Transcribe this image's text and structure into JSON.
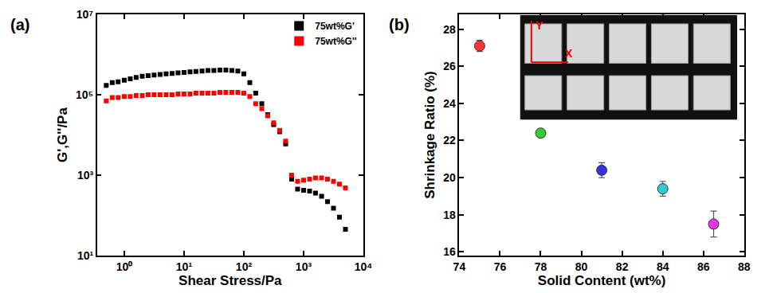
{
  "chart_data": [
    {
      "panel": "(a)",
      "type": "scatter",
      "x_label": "Shear Stress/Pa",
      "y_label": "G',G''/Pa",
      "log": true,
      "legend": "upper right",
      "x": [
        0.5,
        0.63,
        0.79,
        1,
        1.26,
        1.58,
        2,
        2.51,
        3.16,
        3.98,
        5.01,
        6.31,
        7.94,
        10,
        12.6,
        15.8,
        20,
        25.1,
        31.6,
        39.8,
        50.1,
        63.1,
        79.4,
        100,
        126,
        158,
        200,
        251,
        316,
        398,
        501,
        631,
        794,
        1000,
        1260,
        1580,
        2000,
        2510,
        3160,
        3980,
        5010
      ],
      "series": [
        {
          "name": "75wt%G'",
          "color": "#000000",
          "marker": "square",
          "values": [
            170000,
            200000,
            210000,
            230000,
            250000,
            270000,
            290000,
            300000,
            310000,
            320000,
            330000,
            340000,
            350000,
            360000,
            370000,
            380000,
            390000,
            400000,
            400000,
            410000,
            410000,
            400000,
            390000,
            330000,
            200000,
            110000,
            60000,
            32000,
            18000,
            12000,
            6000,
            800,
            450,
            420,
            400,
            360,
            300,
            220,
            150,
            90,
            45
          ]
        },
        {
          "name": "75wt%G''",
          "color": "#ff0000",
          "marker": "square",
          "values": [
            70000,
            85000,
            85000,
            90000,
            90000,
            95000,
            95000,
            100000,
            100000,
            100000,
            100000,
            100000,
            105000,
            105000,
            105000,
            110000,
            110000,
            110000,
            110000,
            115000,
            115000,
            115000,
            115000,
            110000,
            90000,
            60000,
            45000,
            30000,
            20000,
            13000,
            7000,
            1000,
            700,
            750,
            800,
            850,
            850,
            800,
            700,
            600,
            480
          ]
        }
      ],
      "xlim": [
        0.35,
        10000
      ],
      "ylim": [
        10,
        10000000
      ],
      "xticks": [
        {
          "value": 1,
          "label": "10⁰"
        },
        {
          "value": 10,
          "label": "10¹"
        },
        {
          "value": 100,
          "label": "10²"
        },
        {
          "value": 1000,
          "label": "10³"
        },
        {
          "value": 10000,
          "label": "10⁴"
        }
      ],
      "yticks": [
        {
          "value": 10,
          "label": "10¹"
        },
        {
          "value": 1000,
          "label": "10³"
        },
        {
          "value": 100000,
          "label": "10⁵"
        },
        {
          "value": 10000000,
          "label": "10⁷"
        }
      ]
    },
    {
      "panel": "(b)",
      "type": "scatter",
      "x_label": "Solid Content (wt%)",
      "y_label": "Shrinkage Ratio (%)",
      "x": [
        75,
        78,
        81,
        84,
        86.5
      ],
      "values": [
        27.1,
        22.4,
        20.4,
        19.4,
        17.5
      ],
      "errors": [
        0.3,
        0.2,
        0.4,
        0.4,
        0.7
      ],
      "colors": [
        "#ff3333",
        "#33cc33",
        "#3333dd",
        "#33cccc",
        "#ee33ee"
      ],
      "marker": "circle",
      "xlim": [
        74,
        88
      ],
      "ylim": [
        15.8,
        28.8
      ],
      "xticks": [
        74,
        76,
        78,
        80,
        82,
        84,
        86,
        88
      ],
      "yticks": [
        16,
        18,
        20,
        22,
        24,
        26,
        28
      ],
      "inset_labels": [
        "Y",
        "X"
      ]
    }
  ]
}
